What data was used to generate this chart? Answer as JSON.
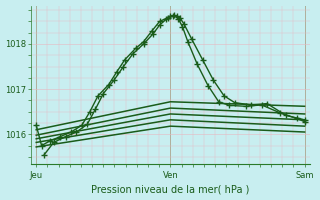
{
  "title": "Pression niveau de la mer( hPa )",
  "bg_color": "#c8eef0",
  "grid_color": "#e8b8c0",
  "line_color": "#1a5c1a",
  "ylim": [
    1015.35,
    1018.85
  ],
  "yticks": [
    1016,
    1017,
    1018
  ],
  "xtick_labels": [
    "Jeu",
    "Ven",
    "Sam"
  ],
  "xtick_pos": [
    0.0,
    0.5,
    1.0
  ],
  "series": [
    {
      "x": [
        0.0,
        0.02,
        0.05,
        0.09,
        0.13,
        0.17,
        0.2,
        0.23,
        0.27,
        0.3,
        0.33,
        0.37,
        0.4,
        0.43,
        0.46,
        0.49,
        0.51,
        0.525,
        0.535,
        0.55,
        0.58,
        0.62,
        0.66,
        0.7,
        0.74,
        0.8,
        0.86,
        0.93,
        1.0
      ],
      "y": [
        1016.2,
        1015.75,
        1015.85,
        1015.95,
        1016.05,
        1016.2,
        1016.5,
        1016.85,
        1017.1,
        1017.38,
        1017.65,
        1017.9,
        1018.05,
        1018.28,
        1018.5,
        1018.58,
        1018.62,
        1018.62,
        1018.58,
        1018.45,
        1018.1,
        1017.65,
        1017.2,
        1016.85,
        1016.7,
        1016.65,
        1016.68,
        1016.42,
        1016.32
      ],
      "lw": 1.0,
      "marker": true
    },
    {
      "x": [
        0.03,
        0.065,
        0.11,
        0.15,
        0.19,
        0.22,
        0.25,
        0.29,
        0.325,
        0.36,
        0.4,
        0.435,
        0.46,
        0.485,
        0.5,
        0.515,
        0.53,
        0.545,
        0.565,
        0.6,
        0.64,
        0.68,
        0.72,
        0.78,
        0.84,
        0.91,
        0.97,
        1.0
      ],
      "y": [
        1015.55,
        1015.82,
        1015.95,
        1016.05,
        1016.22,
        1016.55,
        1016.9,
        1017.2,
        1017.5,
        1017.78,
        1018.0,
        1018.22,
        1018.42,
        1018.55,
        1018.62,
        1018.63,
        1018.55,
        1018.38,
        1018.05,
        1017.55,
        1017.08,
        1016.72,
        1016.64,
        1016.62,
        1016.65,
        1016.47,
        1016.35,
        1016.28
      ],
      "lw": 1.0,
      "marker": true
    },
    {
      "x": [
        0.0,
        0.5,
        1.0
      ],
      "y": [
        1016.1,
        1016.72,
        1016.62
      ],
      "lw": 1.1,
      "marker": false
    },
    {
      "x": [
        0.0,
        0.5,
        1.0
      ],
      "y": [
        1015.98,
        1016.58,
        1016.45
      ],
      "lw": 1.1,
      "marker": false
    },
    {
      "x": [
        0.0,
        0.5,
        1.0
      ],
      "y": [
        1015.9,
        1016.45,
        1016.32
      ],
      "lw": 1.1,
      "marker": false
    },
    {
      "x": [
        0.0,
        0.5,
        1.0
      ],
      "y": [
        1015.82,
        1016.32,
        1016.18
      ],
      "lw": 1.1,
      "marker": false
    },
    {
      "x": [
        0.0,
        0.5,
        1.0
      ],
      "y": [
        1015.72,
        1016.18,
        1016.05
      ],
      "lw": 1.1,
      "marker": false
    }
  ]
}
